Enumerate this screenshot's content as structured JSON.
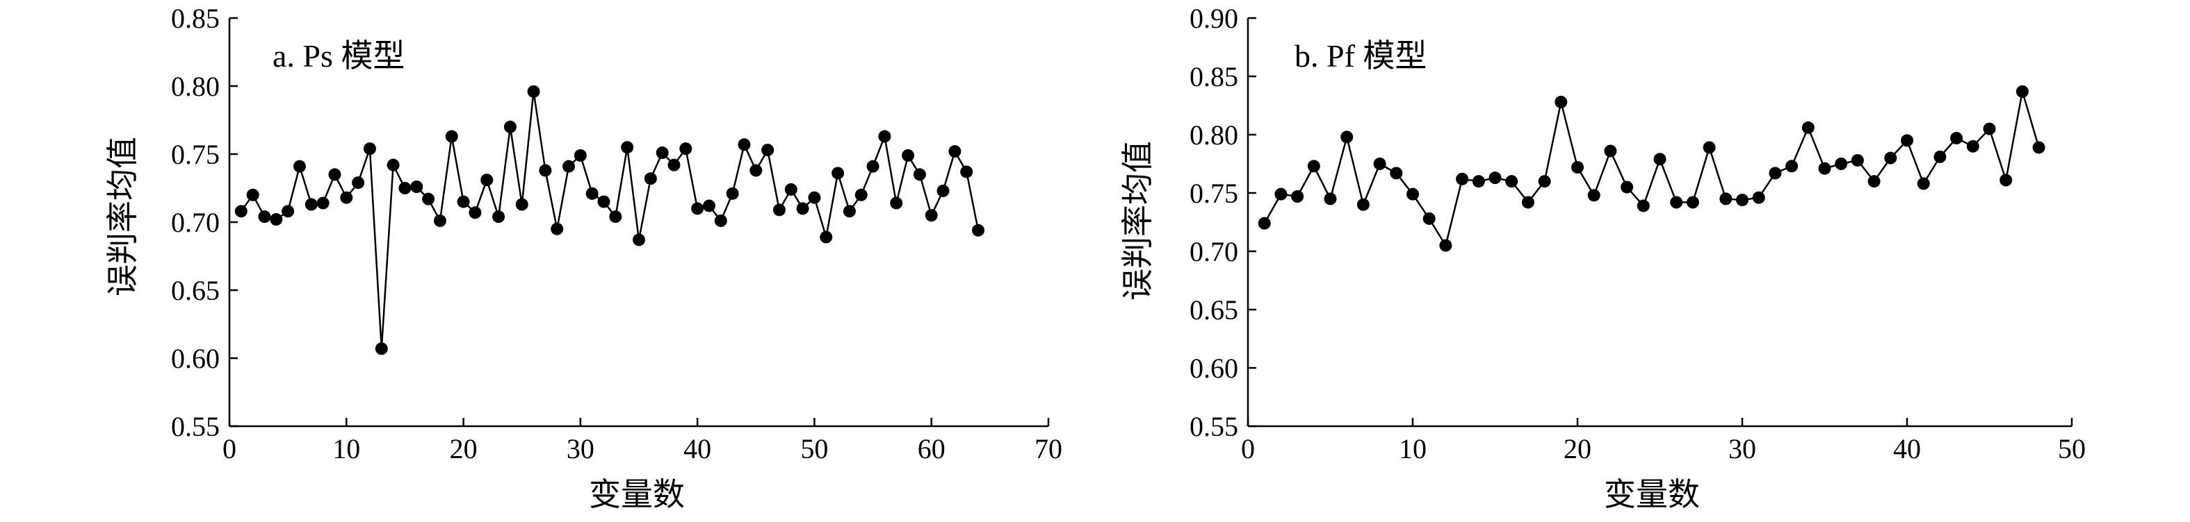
{
  "chart_data": [
    {
      "type": "line",
      "title": "a. Ps 模型",
      "xlabel": "变量数",
      "ylabel": "误判率均值",
      "xlim": [
        0,
        70
      ],
      "ylim": [
        0.55,
        0.85
      ],
      "xticks": [
        "0",
        "10",
        "20",
        "30",
        "40",
        "50",
        "60",
        "70"
      ],
      "yticks": [
        "0.55",
        "0.60",
        "0.65",
        "0.70",
        "0.75",
        "0.80",
        "0.85"
      ],
      "grid": false,
      "marker": "filled-circle",
      "color": "#000000",
      "series": [
        {
          "x": [
            1,
            2,
            3,
            4,
            5,
            6,
            7,
            8,
            9,
            10,
            11,
            12,
            13,
            14,
            15,
            16,
            17,
            18,
            19,
            20,
            21,
            22,
            23,
            24,
            25,
            26,
            27,
            28,
            29,
            30,
            31,
            32,
            33,
            34,
            35,
            36,
            37,
            38,
            39,
            40,
            41,
            42,
            43,
            44,
            45,
            46,
            47,
            48,
            49,
            50,
            51,
            52,
            53,
            54,
            55,
            56,
            57,
            58,
            59,
            60,
            61,
            62,
            63,
            64
          ],
          "y": [
            0.708,
            0.72,
            0.704,
            0.702,
            0.708,
            0.741,
            0.713,
            0.714,
            0.735,
            0.718,
            0.729,
            0.754,
            0.607,
            0.742,
            0.725,
            0.726,
            0.717,
            0.701,
            0.763,
            0.715,
            0.707,
            0.731,
            0.704,
            0.77,
            0.713,
            0.796,
            0.738,
            0.695,
            0.741,
            0.749,
            0.721,
            0.715,
            0.704,
            0.755,
            0.687,
            0.732,
            0.751,
            0.742,
            0.754,
            0.71,
            0.712,
            0.701,
            0.721,
            0.757,
            0.738,
            0.753,
            0.709,
            0.724,
            0.71,
            0.718,
            0.689,
            0.736,
            0.708,
            0.72,
            0.741,
            0.763,
            0.714,
            0.749,
            0.735,
            0.705,
            0.723,
            0.752,
            0.737,
            0.694
          ]
        }
      ]
    },
    {
      "type": "line",
      "title": "b. Pf 模型",
      "xlabel": "变量数",
      "ylabel": "误判率均值",
      "xlim": [
        0,
        50
      ],
      "ylim": [
        0.55,
        0.9
      ],
      "xticks": [
        "0",
        "10",
        "20",
        "30",
        "40",
        "50"
      ],
      "yticks": [
        "0.55",
        "0.60",
        "0.65",
        "0.70",
        "0.75",
        "0.80",
        "0.85",
        "0.90"
      ],
      "grid": false,
      "marker": "filled-circle",
      "color": "#000000",
      "series": [
        {
          "x": [
            1,
            2,
            3,
            4,
            5,
            6,
            7,
            8,
            9,
            10,
            11,
            12,
            13,
            14,
            15,
            16,
            17,
            18,
            19,
            20,
            21,
            22,
            23,
            24,
            25,
            26,
            27,
            28,
            29,
            30,
            31,
            32,
            33,
            34,
            35,
            36,
            37,
            38,
            39,
            40,
            41,
            42,
            43,
            44,
            45,
            46,
            47,
            48
          ],
          "y": [
            0.724,
            0.749,
            0.747,
            0.773,
            0.745,
            0.798,
            0.74,
            0.775,
            0.767,
            0.749,
            0.728,
            0.705,
            0.762,
            0.76,
            0.763,
            0.76,
            0.742,
            0.76,
            0.828,
            0.772,
            0.748,
            0.786,
            0.755,
            0.739,
            0.779,
            0.742,
            0.742,
            0.789,
            0.745,
            0.744,
            0.746,
            0.767,
            0.773,
            0.806,
            0.771,
            0.775,
            0.778,
            0.76,
            0.78,
            0.795,
            0.758,
            0.781,
            0.797,
            0.79,
            0.805,
            0.761,
            0.837,
            0.789
          ]
        }
      ]
    }
  ]
}
